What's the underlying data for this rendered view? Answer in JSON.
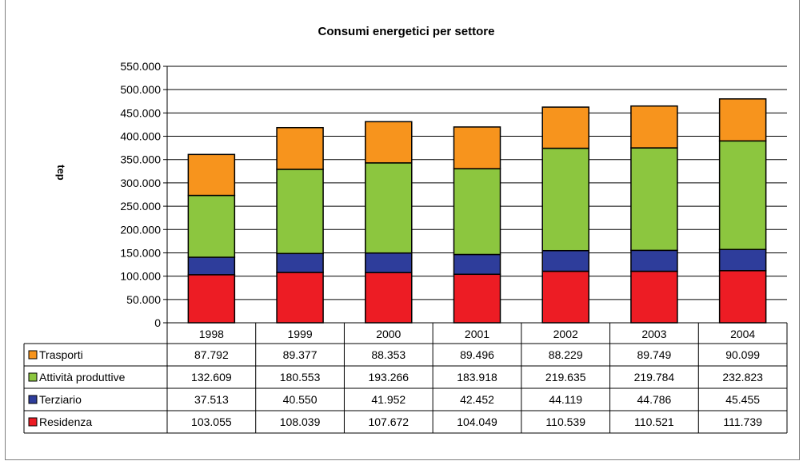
{
  "chart_data": {
    "type": "bar",
    "stacked": true,
    "title": "Consumi energetici per settore",
    "ylabel": "tep",
    "xlabel": "",
    "ylim": [
      0,
      550000
    ],
    "yticks": [
      0,
      50000,
      100000,
      150000,
      200000,
      250000,
      300000,
      350000,
      400000,
      450000,
      500000,
      550000
    ],
    "ytick_labels": [
      "0",
      "50.000",
      "100.000",
      "150.000",
      "200.000",
      "250.000",
      "300.000",
      "350.000",
      "400.000",
      "450.000",
      "500.000",
      "550.000"
    ],
    "grid": true,
    "legend": "data-table",
    "categories": [
      "1998",
      "1999",
      "2000",
      "2001",
      "2002",
      "2003",
      "2004"
    ],
    "series": [
      {
        "name": "Residenza",
        "color": "#ed1c24",
        "values": [
          103055,
          108039,
          107672,
          104049,
          110539,
          110521,
          111739
        ],
        "labels": [
          "103.055",
          "108.039",
          "107.672",
          "104.049",
          "110.539",
          "110.521",
          "111.739"
        ]
      },
      {
        "name": "Terziario",
        "color": "#2e3d9b",
        "values": [
          37513,
          40550,
          41952,
          42452,
          44119,
          44786,
          45455
        ],
        "labels": [
          "37.513",
          "40.550",
          "41.952",
          "42.452",
          "44.119",
          "44.786",
          "45.455"
        ]
      },
      {
        "name": "Attività produttive",
        "color": "#8cc63f",
        "values": [
          132609,
          180553,
          193266,
          183918,
          219635,
          219784,
          232823
        ],
        "labels": [
          "132.609",
          "180.553",
          "193.266",
          "183.918",
          "219.635",
          "219.784",
          "232.823"
        ]
      },
      {
        "name": "Trasporti",
        "color": "#f7941d",
        "values": [
          87792,
          89377,
          88353,
          89496,
          88229,
          89749,
          90099
        ],
        "labels": [
          "87.792",
          "89.377",
          "88.353",
          "89.496",
          "88.229",
          "89.749",
          "90.099"
        ]
      }
    ],
    "table_row_order": [
      "Trasporti",
      "Attività produttive",
      "Terziario",
      "Residenza"
    ]
  }
}
